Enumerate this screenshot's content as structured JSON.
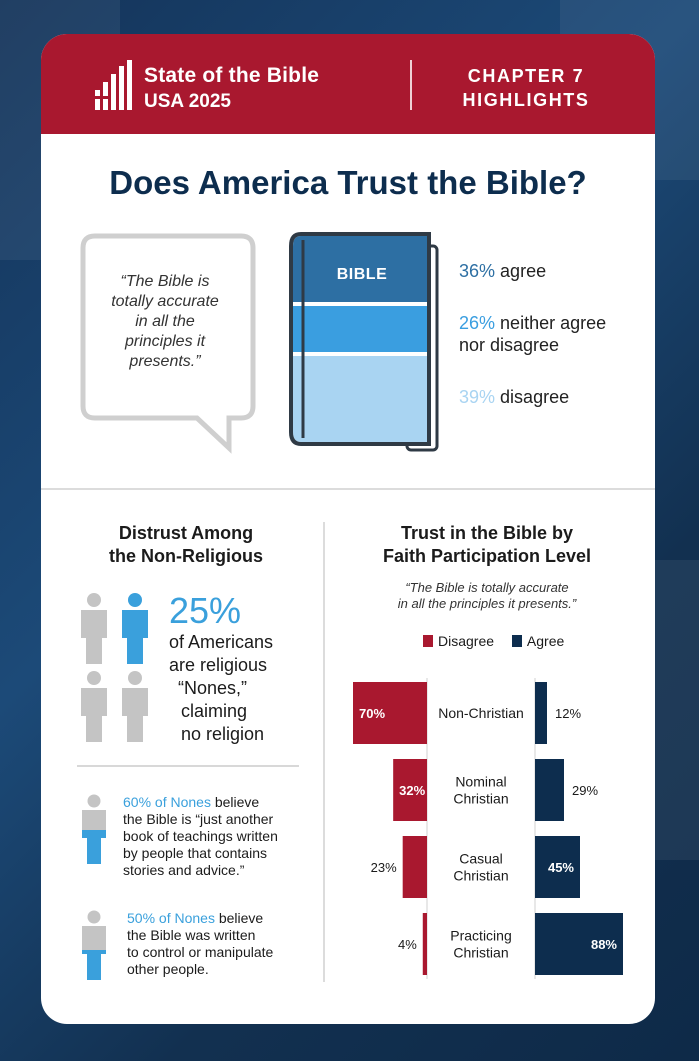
{
  "header": {
    "logo_title": "State of the Bible",
    "logo_sub": "USA 2025",
    "chapter_line1": "CHAPTER 7",
    "chapter_line2": "HIGHLIGHTS"
  },
  "main_title": "Does America Trust the Bible?",
  "quote": {
    "line1": "“The Bible is",
    "line2": "totally accurate",
    "line3": "in all the",
    "line4": "principles it",
    "line5": "presents.”"
  },
  "book": {
    "label": "BIBLE",
    "segments": [
      {
        "pct": "36%",
        "text": "agree",
        "value": 36,
        "color": "#2d6fa3"
      },
      {
        "pct": "26%",
        "text": "neither agree",
        "text2": "nor disagree",
        "value": 26,
        "color": "#3a9ee0"
      },
      {
        "pct": "39%",
        "text": "disagree",
        "value": 39,
        "color": "#a9d4f2"
      }
    ]
  },
  "nonreligious": {
    "title_line1": "Distrust Among",
    "title_line2": "the Non-Religious",
    "big_pct": "25%",
    "text_lines": [
      "of Americans",
      "are religious",
      "“Nones,”",
      "claiming",
      "no religion"
    ],
    "fact1": {
      "highlight": "60% of Nones",
      "rest_line1": " believe",
      "lines": [
        "the Bible is “just another",
        "book of teachings written",
        "by people that contains",
        "stories and advice.”"
      ]
    },
    "fact2": {
      "highlight": "50% of Nones",
      "rest_line1": " believe",
      "lines": [
        "the Bible was written",
        "to control or manipulate",
        "other people."
      ]
    }
  },
  "trust_chart": {
    "title_line1": "Trust in the Bible by",
    "title_line2": "Faith Participation Level",
    "quote_line1": "“The Bible is totally accurate",
    "quote_line2": "in all the principles it presents.”",
    "legend_disagree": "Disagree",
    "legend_agree": "Agree"
  },
  "colors": {
    "red": "#a9182f",
    "navy": "#0d2d4e",
    "accent_blue": "#3aa0dc",
    "gray": "#c4c4c4"
  },
  "chart_data": {
    "type": "bar",
    "title": "Trust in the Bible by Faith Participation Level",
    "subtitle": "“The Bible is totally accurate in all the principles it presents.”",
    "categories": [
      [
        "Non-Christian"
      ],
      [
        "Nominal",
        "Christian"
      ],
      [
        "Casual",
        "Christian"
      ],
      [
        "Practicing",
        "Christian"
      ]
    ],
    "series": [
      {
        "name": "Disagree",
        "values": [
          70,
          32,
          23,
          4
        ],
        "labels": [
          "70%",
          "32%",
          "23%",
          "4%"
        ],
        "color": "#a9182f"
      },
      {
        "name": "Agree",
        "values": [
          12,
          29,
          45,
          88
        ],
        "labels": [
          "12%",
          "29%",
          "45%",
          "88%"
        ],
        "color": "#0d2d4e"
      }
    ],
    "legend": "top",
    "grid": false
  }
}
